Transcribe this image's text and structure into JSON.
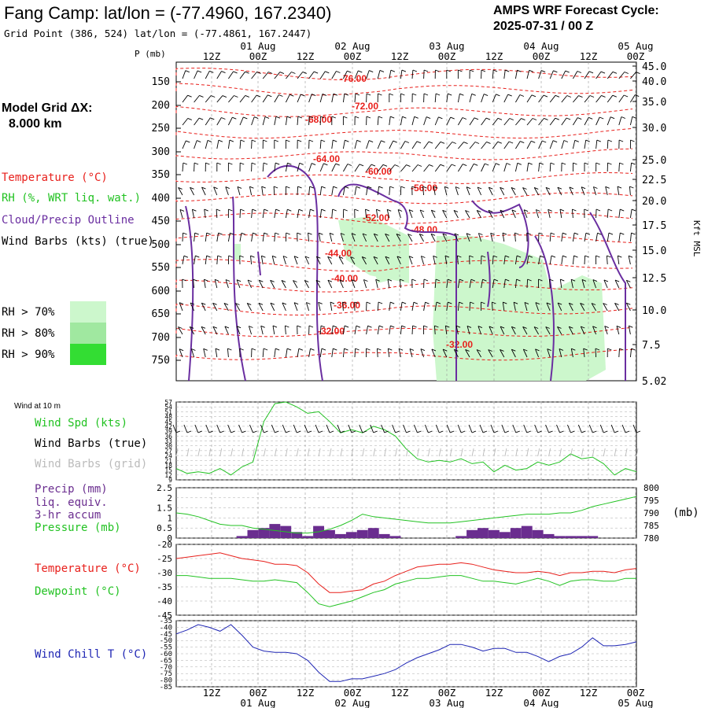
{
  "header": {
    "station_title": "Fang Camp:  lat/lon = (-77.4960, 167.2340)",
    "grid_point": "Grid Point (386, 524) lat/lon = (-77.4861, 167.2447)",
    "cycle_title": "AMPS WRF Forecast Cycle:",
    "cycle_value": "2025-07-31 / 00  Z"
  },
  "left_labels": {
    "model_grid": "Model Grid ΔX:",
    "model_grid_value": "8.000 km",
    "temperature": "Temperature (°C)",
    "rh": "RH (%, WRT liq. wat.)",
    "cloud": "Cloud/Precip Outline",
    "wind_barbs": "Wind Barbs (kts) (true)",
    "rh70": "RH > 70%",
    "rh80": "RH > 80%",
    "rh90": "RH > 90%",
    "wind10m": "Wind at 10 m",
    "wind_spd": "Wind Spd (kts)",
    "wind_barbs_true": "Wind Barbs (true)",
    "wind_barbs_grid": "Wind Barbs (grid)",
    "precip": "Precip (mm)",
    "liq_equiv": "liq. equiv.",
    "accum": "3-hr accum",
    "pressure": "Pressure (mb)",
    "pressure_unit": "(mb)",
    "temperature2": "Temperature (°C)",
    "dewpoint": "Dewpoint (°C)",
    "windchill": "Wind Chill T (°C)",
    "p_axis": "P (mb)",
    "kft": "Kft MSL"
  },
  "colors": {
    "temperature": "#e8201c",
    "dewpoint": "#22c222",
    "wind_speed": "#22c222",
    "pressure": "#22c222",
    "cloud": "#6a2ea0",
    "precip": "#6a2d8f",
    "windchill": "#1f26b4",
    "rh70": "#ccf7cc",
    "rh80": "#a0e8a0",
    "rh90": "#33dd33",
    "grid": "#999999"
  },
  "chart_data": [
    {
      "type": "heatmap",
      "panel": "time-height cross section",
      "x_ticks_top": [
        "12Z",
        "00Z",
        "12Z",
        "00Z",
        "12Z",
        "00Z",
        "12Z",
        "00Z",
        "12Z",
        "00Z"
      ],
      "x_dates_top": [
        "01 Aug",
        "02 Aug",
        "03 Aug",
        "04 Aug",
        "05 Aug"
      ],
      "y_ticks_pressure": [
        "150",
        "200",
        "250",
        "300",
        "350",
        "400",
        "450",
        "500",
        "550",
        "600",
        "650",
        "700",
        "750"
      ],
      "y_ticks_height": [
        "45.0",
        "40.0",
        "35.0",
        "30.0",
        "25.0",
        "22.5",
        "20.0",
        "17.5",
        "15.0",
        "12.5",
        "10.0",
        "7.5",
        "5.02"
      ],
      "temperature_contour_labels": [
        "-76.00",
        "-72.00",
        "-68.00",
        "-64.00",
        "-60.00",
        "-56.00",
        "-52.00",
        "-48.00",
        "-44.00",
        "-40.00",
        "-36.00",
        "-32.00",
        "-32.00"
      ]
    },
    {
      "type": "line",
      "panel": "wind at 10 m",
      "y_ticks": [
        "57",
        "54",
        "51",
        "48",
        "45",
        "42",
        "39",
        "36",
        "33",
        "30",
        "27",
        "24",
        "21",
        "18",
        "15",
        "12",
        "9"
      ],
      "ylim": [
        9,
        57
      ],
      "series": [
        {
          "name": "Wind Spd (kts)",
          "values": [
            16,
            13,
            14,
            13,
            16,
            12,
            17,
            20,
            45,
            56,
            57,
            54,
            50,
            51,
            45,
            38,
            40,
            38,
            42,
            40,
            36,
            28,
            22,
            20,
            21,
            20,
            22,
            19,
            20,
            14,
            18,
            15,
            16,
            20,
            18,
            20,
            25,
            22,
            23,
            19,
            12,
            16,
            14
          ]
        }
      ]
    },
    {
      "type": "bar",
      "panel": "precip / pressure",
      "y_ticks_left": [
        "2.5",
        "2",
        "1.5",
        "1",
        "0.5",
        "0"
      ],
      "y_ticks_right": [
        "800",
        "795",
        "790",
        "785",
        "780"
      ],
      "ylim": [
        0,
        2.5
      ],
      "ylim_right": [
        780,
        800
      ],
      "precip_values": [
        0,
        0,
        0,
        0,
        0,
        0,
        0.1,
        0.4,
        0.5,
        0.7,
        0.6,
        0.3,
        0.1,
        0.6,
        0.4,
        0.2,
        0.3,
        0.4,
        0.5,
        0.2,
        0.1,
        0,
        0,
        0,
        0,
        0,
        0.1,
        0.4,
        0.5,
        0.4,
        0.3,
        0.5,
        0.6,
        0.4,
        0.2,
        0.1,
        0.1,
        0.1,
        0.1,
        0,
        0,
        0,
        0
      ],
      "series": [
        {
          "name": "Pressure (mb)",
          "values": [
            790,
            789.5,
            788.5,
            787,
            785.5,
            785,
            785,
            784,
            783.5,
            783,
            782.5,
            782,
            782,
            782.5,
            783.5,
            785,
            787,
            789.5,
            788.5,
            788,
            787.5,
            787,
            786.5,
            786,
            786,
            786,
            786.5,
            787,
            787.5,
            788,
            788.5,
            789,
            789.5,
            789.5,
            789.5,
            790,
            790,
            791,
            792.5,
            793.5,
            794.5,
            795.5,
            796.5
          ]
        }
      ]
    },
    {
      "type": "line",
      "panel": "temperature / dewpoint",
      "y_ticks": [
        "-20",
        "-25",
        "-30",
        "-35",
        "-40",
        "-45"
      ],
      "ylim": [
        -45,
        -20
      ],
      "series": [
        {
          "name": "Temperature (°C)",
          "values": [
            -25,
            -24.5,
            -24,
            -23.5,
            -23,
            -24,
            -25,
            -25.5,
            -26,
            -27,
            -27,
            -27.5,
            -30,
            -34,
            -37,
            -37,
            -36.5,
            -36,
            -34,
            -33,
            -31,
            -29.5,
            -28,
            -27.5,
            -27,
            -27,
            -26.5,
            -27,
            -28,
            -29,
            -29.5,
            -30,
            -30,
            -29.5,
            -30,
            -31,
            -30,
            -30,
            -29.5,
            -29.5,
            -30,
            -29,
            -28.5
          ]
        },
        {
          "name": "Dewpoint (°C)",
          "values": [
            -31,
            -31,
            -31.5,
            -32,
            -32,
            -32,
            -32.5,
            -33,
            -33,
            -32.5,
            -33,
            -33.5,
            -37,
            -41,
            -42,
            -41,
            -40,
            -38.5,
            -37,
            -36,
            -34,
            -33,
            -32,
            -32,
            -31.5,
            -31,
            -31,
            -32,
            -33,
            -33,
            -33.5,
            -34,
            -33,
            -32,
            -33,
            -34.5,
            -33,
            -32.5,
            -32.5,
            -33,
            -33,
            -32,
            -32
          ]
        }
      ]
    },
    {
      "type": "line",
      "panel": "wind chill",
      "y_ticks": [
        "-35",
        "-40",
        "-45",
        "-50",
        "-55",
        "-60",
        "-65",
        "-70",
        "-75",
        "-80",
        "-85"
      ],
      "ylim": [
        -85,
        -35
      ],
      "series": [
        {
          "name": "Wind Chill T (°C)",
          "values": [
            -45,
            -42,
            -38,
            -40,
            -43,
            -38,
            -46,
            -55,
            -58,
            -59,
            -59,
            -60,
            -65,
            -74,
            -81,
            -81,
            -79,
            -79,
            -77,
            -75,
            -72,
            -67,
            -63,
            -60,
            -57,
            -53,
            -53,
            -55,
            -58,
            -56,
            -56,
            -59,
            -59,
            -62,
            -66,
            -62,
            -60,
            -55,
            -48,
            -54,
            -54,
            -53,
            -51
          ]
        }
      ]
    }
  ],
  "bottom_axis": {
    "ticks": [
      "12Z",
      "00Z",
      "12Z",
      "00Z",
      "12Z",
      "00Z",
      "12Z",
      "00Z",
      "12Z",
      "00Z"
    ],
    "dates": [
      "01 Aug",
      "02 Aug",
      "03 Aug",
      "04 Aug",
      "05 Aug"
    ]
  }
}
